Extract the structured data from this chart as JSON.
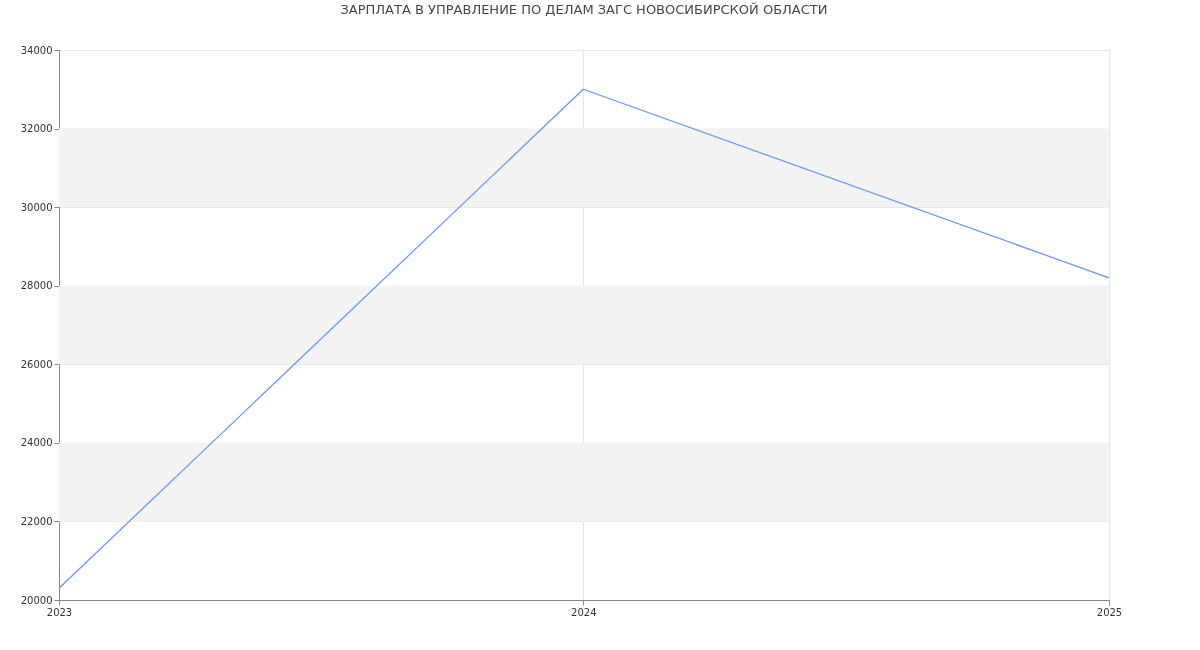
{
  "chart_data": {
    "type": "line",
    "title": "ЗАРПЛАТА В УПРАВЛЕНИЕ ПО ДЕЛАМ ЗАГС НОВОСИБИРСКОЙ ОБЛАСТИ",
    "x": [
      "2023",
      "2024",
      "2025"
    ],
    "series": [
      {
        "color": "#6495ed",
        "values": [
          20300,
          33000,
          28200
        ]
      }
    ],
    "xlim": [
      "2023",
      "2025"
    ],
    "xticks": [
      "2023",
      "2024",
      "2025"
    ],
    "ylim": [
      20000,
      34000
    ],
    "yticks": [
      20000,
      22000,
      24000,
      26000,
      28000,
      30000,
      32000,
      34000
    ],
    "bands": [
      {
        "axis": "y",
        "from": 22000,
        "to": 24000,
        "color": "#f3f3f3"
      },
      {
        "axis": "y",
        "from": 26000,
        "to": 28000,
        "color": "#f3f3f3"
      },
      {
        "axis": "y",
        "from": 30000,
        "to": 32000,
        "color": "#f3f3f3"
      }
    ],
    "grid": true,
    "marker": "none",
    "line_style": "solid"
  }
}
